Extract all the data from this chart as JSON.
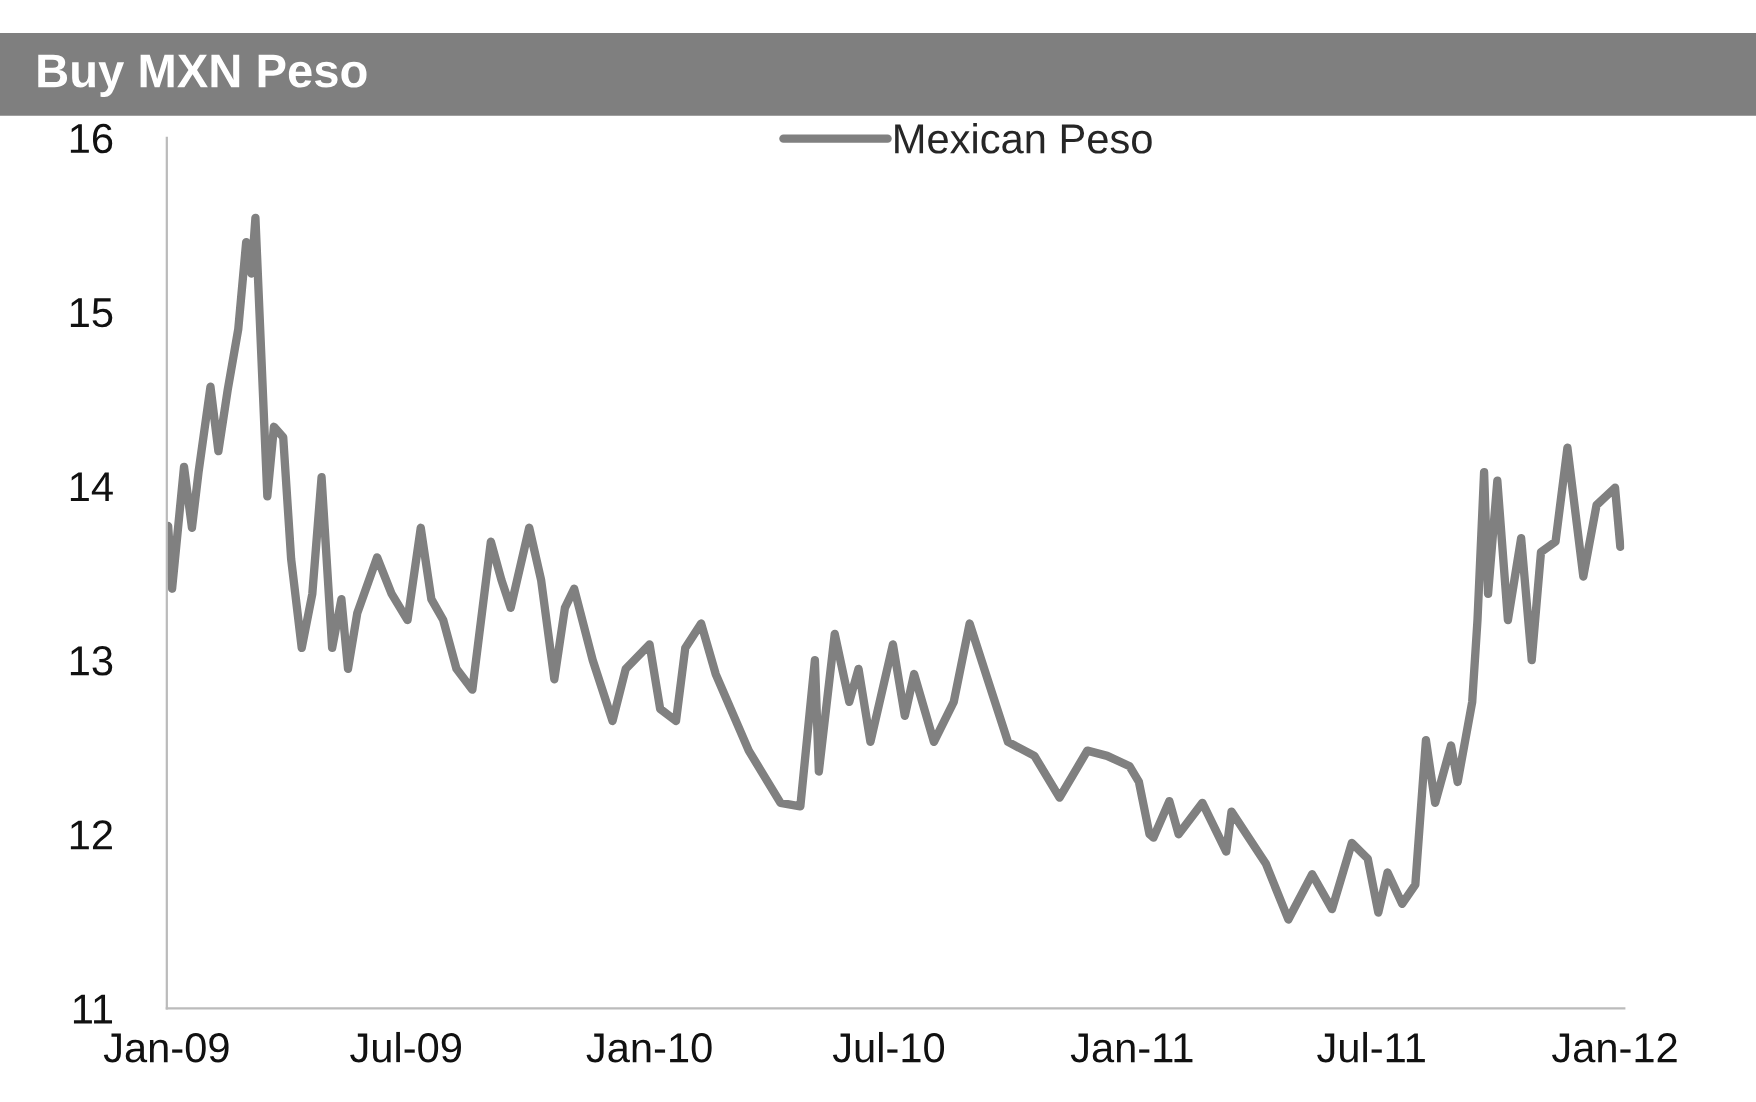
{
  "chart_data": {
    "type": "line",
    "title": "Buy MXN Peso",
    "x": [
      "2009-01-02",
      "2009-01-05",
      "2009-01-14",
      "2009-01-20",
      "2009-01-25",
      "2009-02-03",
      "2009-02-09",
      "2009-02-16",
      "2009-02-24",
      "2009-03-02",
      "2009-03-06",
      "2009-03-09",
      "2009-03-18",
      "2009-03-23",
      "2009-03-30",
      "2009-04-05",
      "2009-04-13",
      "2009-04-21",
      "2009-04-28",
      "2009-05-06",
      "2009-05-13",
      "2009-05-18",
      "2009-05-25",
      "2009-06-09",
      "2009-06-20",
      "2009-07-02",
      "2009-07-12",
      "2009-07-20",
      "2009-07-29",
      "2009-08-08",
      "2009-08-20",
      "2009-09-03",
      "2009-09-11",
      "2009-09-18",
      "2009-10-02",
      "2009-10-11",
      "2009-10-21",
      "2009-10-29",
      "2009-11-05",
      "2009-11-19",
      "2009-12-04",
      "2009-12-14",
      "2010-01-01",
      "2010-01-09",
      "2010-01-21",
      "2010-01-28",
      "2010-02-09",
      "2010-02-20",
      "2010-03-17",
      "2010-04-10",
      "2010-04-25",
      "2010-05-06",
      "2010-05-09",
      "2010-05-21",
      "2010-06-01",
      "2010-06-08",
      "2010-06-17",
      "2010-07-04",
      "2010-07-13",
      "2010-07-20",
      "2010-08-04",
      "2010-08-19",
      "2010-08-31",
      "2010-09-14",
      "2010-09-29",
      "2010-10-19",
      "2010-11-07",
      "2010-11-28",
      "2010-12-13",
      "2010-12-30",
      "2011-01-06",
      "2011-01-14",
      "2011-01-17",
      "2011-01-29",
      "2011-02-05",
      "2011-02-23",
      "2011-03-13",
      "2011-03-17",
      "2011-04-12",
      "2011-04-29",
      "2011-05-17",
      "2011-06-01",
      "2011-06-16",
      "2011-06-28",
      "2011-07-06",
      "2011-07-13",
      "2011-07-24",
      "2011-08-03",
      "2011-08-11",
      "2011-08-18",
      "2011-08-30",
      "2011-09-04",
      "2011-09-15",
      "2011-09-19",
      "2011-09-24",
      "2011-09-27",
      "2011-10-04",
      "2011-10-12",
      "2011-10-22",
      "2011-10-30",
      "2011-11-06",
      "2011-11-17",
      "2011-11-26",
      "2011-12-08",
      "2011-12-18",
      "2012-01-01",
      "2012-01-05"
    ],
    "series": [
      {
        "name": "Mexican Peso",
        "color": "#808080",
        "values": [
          13.77,
          13.41,
          14.11,
          13.76,
          14.08,
          14.57,
          14.2,
          14.55,
          14.9,
          15.4,
          15.22,
          15.54,
          13.94,
          14.34,
          14.28,
          13.58,
          13.07,
          13.38,
          14.05,
          13.07,
          13.35,
          12.95,
          13.27,
          13.59,
          13.38,
          13.23,
          13.76,
          13.35,
          13.23,
          12.95,
          12.83,
          13.68,
          13.46,
          13.3,
          13.76,
          13.46,
          12.89,
          13.3,
          13.41,
          13.0,
          12.65,
          12.95,
          13.09,
          12.72,
          12.65,
          13.07,
          13.21,
          12.92,
          12.48,
          12.18,
          12.16,
          13.0,
          12.36,
          13.15,
          12.76,
          12.95,
          12.53,
          13.09,
          12.68,
          12.92,
          12.53,
          12.76,
          13.21,
          12.88,
          12.53,
          12.45,
          12.21,
          12.48,
          12.45,
          12.39,
          12.3,
          12.0,
          11.98,
          12.19,
          12.0,
          12.18,
          11.9,
          12.13,
          11.83,
          11.51,
          11.77,
          11.57,
          11.95,
          11.86,
          11.55,
          11.78,
          11.6,
          11.71,
          12.54,
          12.18,
          12.51,
          12.3,
          12.76,
          13.23,
          14.08,
          13.38,
          14.03,
          13.23,
          13.7,
          13.0,
          13.62,
          13.68,
          14.22,
          13.48,
          13.89,
          13.99,
          13.65
        ]
      }
    ],
    "xlim": [
      "2009-01-01",
      "2012-01-08"
    ],
    "xticks": [
      {
        "value": "2009-01-01",
        "label": "Jan-09"
      },
      {
        "value": "2009-07-01",
        "label": "Jul-09"
      },
      {
        "value": "2010-01-01",
        "label": "Jan-10"
      },
      {
        "value": "2010-07-01",
        "label": "Jul-10"
      },
      {
        "value": "2011-01-01",
        "label": "Jan-11"
      },
      {
        "value": "2011-07-01",
        "label": "Jul-11"
      },
      {
        "value": "2012-01-01",
        "label": "Jan-12"
      }
    ],
    "ylim": [
      11,
      16
    ],
    "yticks": [
      11,
      12,
      13,
      14,
      15,
      16
    ],
    "grid": false,
    "legend": "top",
    "line_style": "solid",
    "marker": "none"
  }
}
